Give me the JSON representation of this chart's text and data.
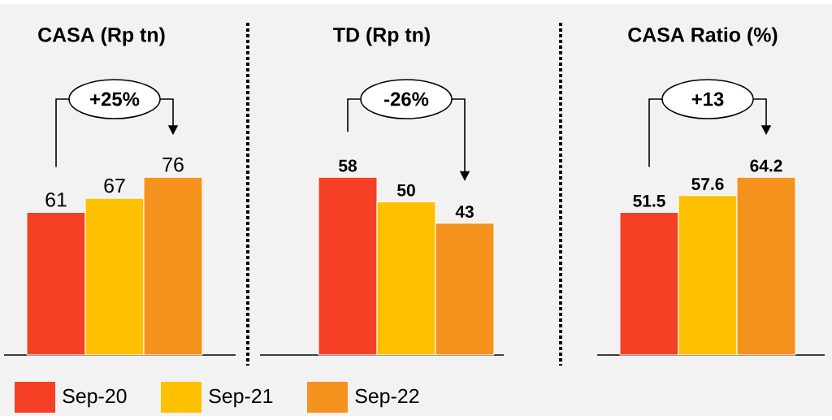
{
  "chart_data": [
    {
      "type": "bar",
      "title": "CASA (Rp tn)",
      "categories": [
        null
      ],
      "data_labels": true,
      "legend": "bottom",
      "annotations": [
        "+25%"
      ],
      "series": [
        {
          "name": "Sep-20",
          "color": "#f64026",
          "values": [
            61
          ]
        },
        {
          "name": "Sep-21",
          "color": "#ffc000",
          "values": [
            67
          ]
        },
        {
          "name": "Sep-22",
          "color": "#f5921e",
          "values": [
            76
          ]
        }
      ]
    },
    {
      "type": "bar",
      "title": "TD (Rp tn)",
      "categories": [
        null
      ],
      "data_labels": true,
      "annotations": [
        "-26%"
      ],
      "series": [
        {
          "color": "#f64026",
          "values": [
            58
          ]
        },
        {
          "color": "#ffc000",
          "values": [
            50
          ]
        },
        {
          "color": "#f5921e",
          "values": [
            43
          ]
        }
      ]
    },
    {
      "type": "bar",
      "title": "CASA Ratio (%)",
      "categories": [
        null
      ],
      "data_labels": true,
      "annotations": [
        "+13"
      ],
      "series": [
        {
          "color": "#f64026",
          "values": [
            51.5
          ]
        },
        {
          "color": "#ffc000",
          "values": [
            57.6
          ]
        },
        {
          "color": "#f5921e",
          "values": [
            64.2
          ]
        }
      ]
    }
  ]
}
